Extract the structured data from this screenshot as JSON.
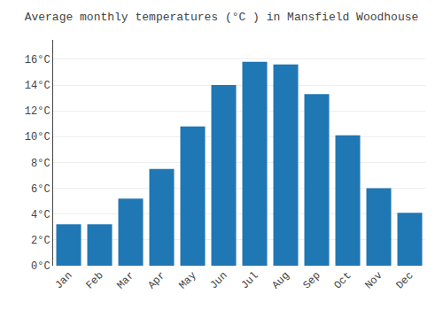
{
  "chart_data": {
    "type": "bar",
    "title": "Average monthly temperatures (°C ) in Mansfield Woodhouse",
    "categories": [
      "Jan",
      "Feb",
      "Mar",
      "Apr",
      "May",
      "Jun",
      "Jul",
      "Aug",
      "Sep",
      "Oct",
      "Nov",
      "Dec"
    ],
    "values": [
      3.2,
      3.2,
      5.2,
      7.5,
      10.8,
      14.0,
      15.8,
      15.6,
      13.3,
      10.1,
      6.0,
      4.1
    ],
    "ylim": [
      0,
      17.5
    ],
    "yticks": [
      {
        "value": 0,
        "label": "0°C"
      },
      {
        "value": 2,
        "label": "2°C"
      },
      {
        "value": 4,
        "label": "4°C"
      },
      {
        "value": 6,
        "label": "6°C"
      },
      {
        "value": 8,
        "label": "8°C"
      },
      {
        "value": 10,
        "label": "10°C"
      },
      {
        "value": 12,
        "label": "12°C"
      },
      {
        "value": 14,
        "label": "14°C"
      },
      {
        "value": 16,
        "label": "16°C"
      }
    ],
    "grid": true
  }
}
